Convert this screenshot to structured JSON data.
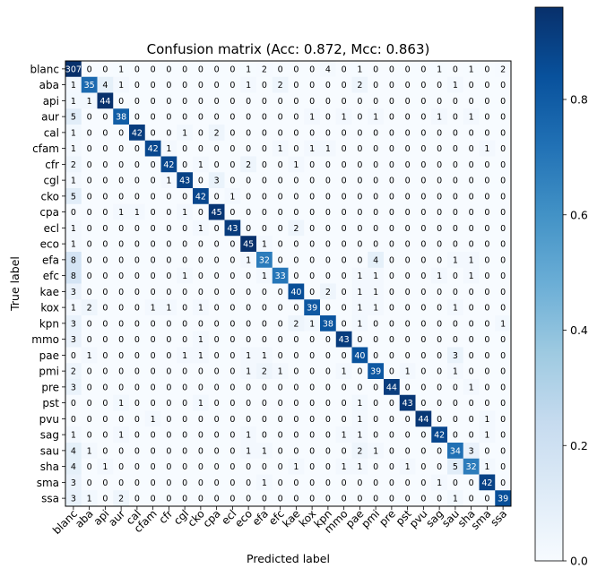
{
  "chart_data": {
    "type": "heatmap",
    "title": "Confusion matrix (Acc: 0.872, Mcc: 0.863)",
    "xlabel": "Predicted label",
    "ylabel": "True label",
    "labels": [
      "blanc",
      "aba",
      "api",
      "aur",
      "cal",
      "cfam",
      "cfr",
      "cgl",
      "cko",
      "cpa",
      "ecl",
      "eco",
      "efa",
      "efc",
      "kae",
      "kox",
      "kpn",
      "mmo",
      "pae",
      "pmi",
      "pre",
      "pst",
      "pvu",
      "sag",
      "sau",
      "sha",
      "sma",
      "ssa"
    ],
    "matrix": [
      [
        307,
        0,
        0,
        1,
        0,
        0,
        0,
        0,
        0,
        0,
        0,
        1,
        2,
        0,
        0,
        0,
        4,
        0,
        1,
        0,
        0,
        0,
        0,
        1,
        0,
        1,
        0,
        2
      ],
      [
        1,
        35,
        4,
        1,
        0,
        0,
        0,
        0,
        0,
        0,
        0,
        1,
        0,
        2,
        0,
        0,
        0,
        0,
        2,
        0,
        0,
        0,
        0,
        0,
        1,
        0,
        0,
        0
      ],
      [
        1,
        1,
        44,
        0,
        0,
        0,
        0,
        0,
        0,
        0,
        0,
        0,
        0,
        0,
        0,
        0,
        0,
        0,
        0,
        0,
        0,
        0,
        0,
        0,
        0,
        0,
        0,
        0
      ],
      [
        5,
        0,
        0,
        38,
        0,
        0,
        0,
        0,
        0,
        0,
        0,
        0,
        0,
        0,
        0,
        1,
        0,
        1,
        0,
        1,
        0,
        0,
        0,
        1,
        0,
        1,
        0,
        0
      ],
      [
        1,
        0,
        0,
        0,
        42,
        0,
        0,
        1,
        0,
        2,
        0,
        0,
        0,
        0,
        0,
        0,
        0,
        0,
        0,
        0,
        0,
        0,
        0,
        0,
        0,
        0,
        0,
        0
      ],
      [
        1,
        0,
        0,
        0,
        0,
        42,
        1,
        0,
        0,
        0,
        0,
        0,
        0,
        1,
        0,
        1,
        1,
        0,
        0,
        0,
        0,
        0,
        0,
        0,
        0,
        0,
        1,
        0
      ],
      [
        2,
        0,
        0,
        0,
        0,
        0,
        42,
        0,
        1,
        0,
        0,
        2,
        0,
        0,
        1,
        0,
        0,
        0,
        0,
        0,
        0,
        0,
        0,
        0,
        0,
        0,
        0,
        0
      ],
      [
        1,
        0,
        0,
        0,
        0,
        0,
        1,
        43,
        0,
        3,
        0,
        0,
        0,
        0,
        0,
        0,
        0,
        0,
        0,
        0,
        0,
        0,
        0,
        0,
        0,
        0,
        0,
        0
      ],
      [
        5,
        0,
        0,
        0,
        0,
        0,
        0,
        0,
        42,
        0,
        1,
        0,
        0,
        0,
        0,
        0,
        0,
        0,
        0,
        0,
        0,
        0,
        0,
        0,
        0,
        0,
        0,
        0
      ],
      [
        0,
        0,
        0,
        1,
        1,
        0,
        0,
        1,
        0,
        45,
        0,
        0,
        0,
        0,
        0,
        0,
        0,
        0,
        0,
        0,
        0,
        0,
        0,
        0,
        0,
        0,
        0,
        0
      ],
      [
        1,
        0,
        0,
        0,
        0,
        0,
        0,
        0,
        1,
        0,
        43,
        0,
        0,
        0,
        2,
        0,
        0,
        0,
        0,
        0,
        0,
        0,
        0,
        0,
        0,
        0,
        0,
        0
      ],
      [
        1,
        0,
        0,
        0,
        0,
        0,
        0,
        0,
        0,
        0,
        0,
        45,
        1,
        0,
        0,
        0,
        0,
        0,
        0,
        0,
        0,
        0,
        0,
        0,
        0,
        0,
        0,
        0
      ],
      [
        8,
        0,
        0,
        0,
        0,
        0,
        0,
        0,
        0,
        0,
        0,
        1,
        32,
        0,
        0,
        0,
        0,
        0,
        0,
        4,
        0,
        0,
        0,
        0,
        1,
        1,
        0,
        0
      ],
      [
        8,
        0,
        0,
        0,
        0,
        0,
        0,
        1,
        0,
        0,
        0,
        0,
        1,
        33,
        0,
        0,
        0,
        0,
        1,
        1,
        0,
        0,
        0,
        1,
        0,
        1,
        0,
        0
      ],
      [
        3,
        0,
        0,
        0,
        0,
        0,
        0,
        0,
        0,
        0,
        0,
        0,
        0,
        0,
        40,
        0,
        2,
        0,
        1,
        1,
        0,
        0,
        0,
        0,
        0,
        0,
        0,
        0
      ],
      [
        1,
        2,
        0,
        0,
        0,
        1,
        1,
        0,
        1,
        0,
        0,
        0,
        0,
        0,
        0,
        39,
        0,
        0,
        1,
        1,
        0,
        0,
        0,
        0,
        1,
        0,
        0,
        0
      ],
      [
        3,
        0,
        0,
        0,
        0,
        0,
        0,
        0,
        0,
        0,
        0,
        0,
        0,
        0,
        2,
        1,
        38,
        0,
        1,
        0,
        0,
        0,
        0,
        0,
        0,
        0,
        0,
        1
      ],
      [
        3,
        0,
        0,
        0,
        0,
        0,
        0,
        0,
        1,
        0,
        0,
        0,
        0,
        0,
        0,
        0,
        0,
        43,
        0,
        0,
        0,
        0,
        0,
        0,
        0,
        0,
        0,
        0
      ],
      [
        0,
        1,
        0,
        0,
        0,
        0,
        0,
        1,
        1,
        0,
        0,
        1,
        1,
        0,
        0,
        0,
        0,
        0,
        40,
        0,
        0,
        0,
        0,
        0,
        3,
        0,
        0,
        0
      ],
      [
        2,
        0,
        0,
        0,
        0,
        0,
        0,
        0,
        0,
        0,
        0,
        1,
        2,
        1,
        0,
        0,
        0,
        1,
        0,
        39,
        0,
        1,
        0,
        0,
        1,
        0,
        0,
        0
      ],
      [
        3,
        0,
        0,
        0,
        0,
        0,
        0,
        0,
        0,
        0,
        0,
        0,
        0,
        0,
        0,
        0,
        0,
        0,
        0,
        0,
        44,
        0,
        0,
        0,
        0,
        1,
        0,
        0
      ],
      [
        0,
        0,
        0,
        1,
        0,
        0,
        0,
        0,
        1,
        0,
        0,
        0,
        0,
        0,
        0,
        0,
        0,
        0,
        1,
        0,
        0,
        43,
        0,
        0,
        0,
        0,
        0,
        0
      ],
      [
        0,
        0,
        0,
        0,
        0,
        1,
        0,
        0,
        0,
        0,
        0,
        0,
        0,
        0,
        0,
        0,
        0,
        0,
        1,
        0,
        0,
        0,
        44,
        0,
        0,
        0,
        1,
        0
      ],
      [
        1,
        0,
        0,
        1,
        0,
        0,
        0,
        0,
        0,
        0,
        0,
        1,
        0,
        0,
        0,
        0,
        0,
        1,
        1,
        0,
        0,
        0,
        0,
        42,
        0,
        0,
        1,
        0
      ],
      [
        4,
        1,
        0,
        0,
        0,
        0,
        0,
        0,
        0,
        0,
        0,
        1,
        1,
        0,
        0,
        0,
        0,
        0,
        2,
        1,
        0,
        0,
        0,
        0,
        34,
        3,
        0,
        0
      ],
      [
        4,
        0,
        1,
        0,
        0,
        0,
        0,
        0,
        0,
        0,
        0,
        0,
        0,
        0,
        1,
        0,
        0,
        1,
        1,
        0,
        0,
        1,
        0,
        0,
        5,
        32,
        1,
        0
      ],
      [
        3,
        0,
        0,
        0,
        0,
        0,
        0,
        0,
        0,
        0,
        0,
        0,
        1,
        0,
        0,
        0,
        0,
        0,
        0,
        0,
        0,
        0,
        0,
        1,
        0,
        0,
        42,
        0
      ],
      [
        3,
        1,
        0,
        2,
        0,
        0,
        0,
        0,
        0,
        0,
        0,
        0,
        0,
        0,
        0,
        0,
        0,
        0,
        0,
        0,
        0,
        0,
        0,
        0,
        1,
        0,
        0,
        39
      ]
    ],
    "colormap": "Blues",
    "colorbar": {
      "ticks": [
        "0.0",
        "0.2",
        "0.4",
        "0.6",
        "0.8"
      ],
      "range": [
        0,
        0.96
      ]
    },
    "colors": {
      "low": "#f7fbff",
      "high": "#08306b",
      "text_dark": "#000000",
      "text_light": "#ffffff"
    }
  }
}
